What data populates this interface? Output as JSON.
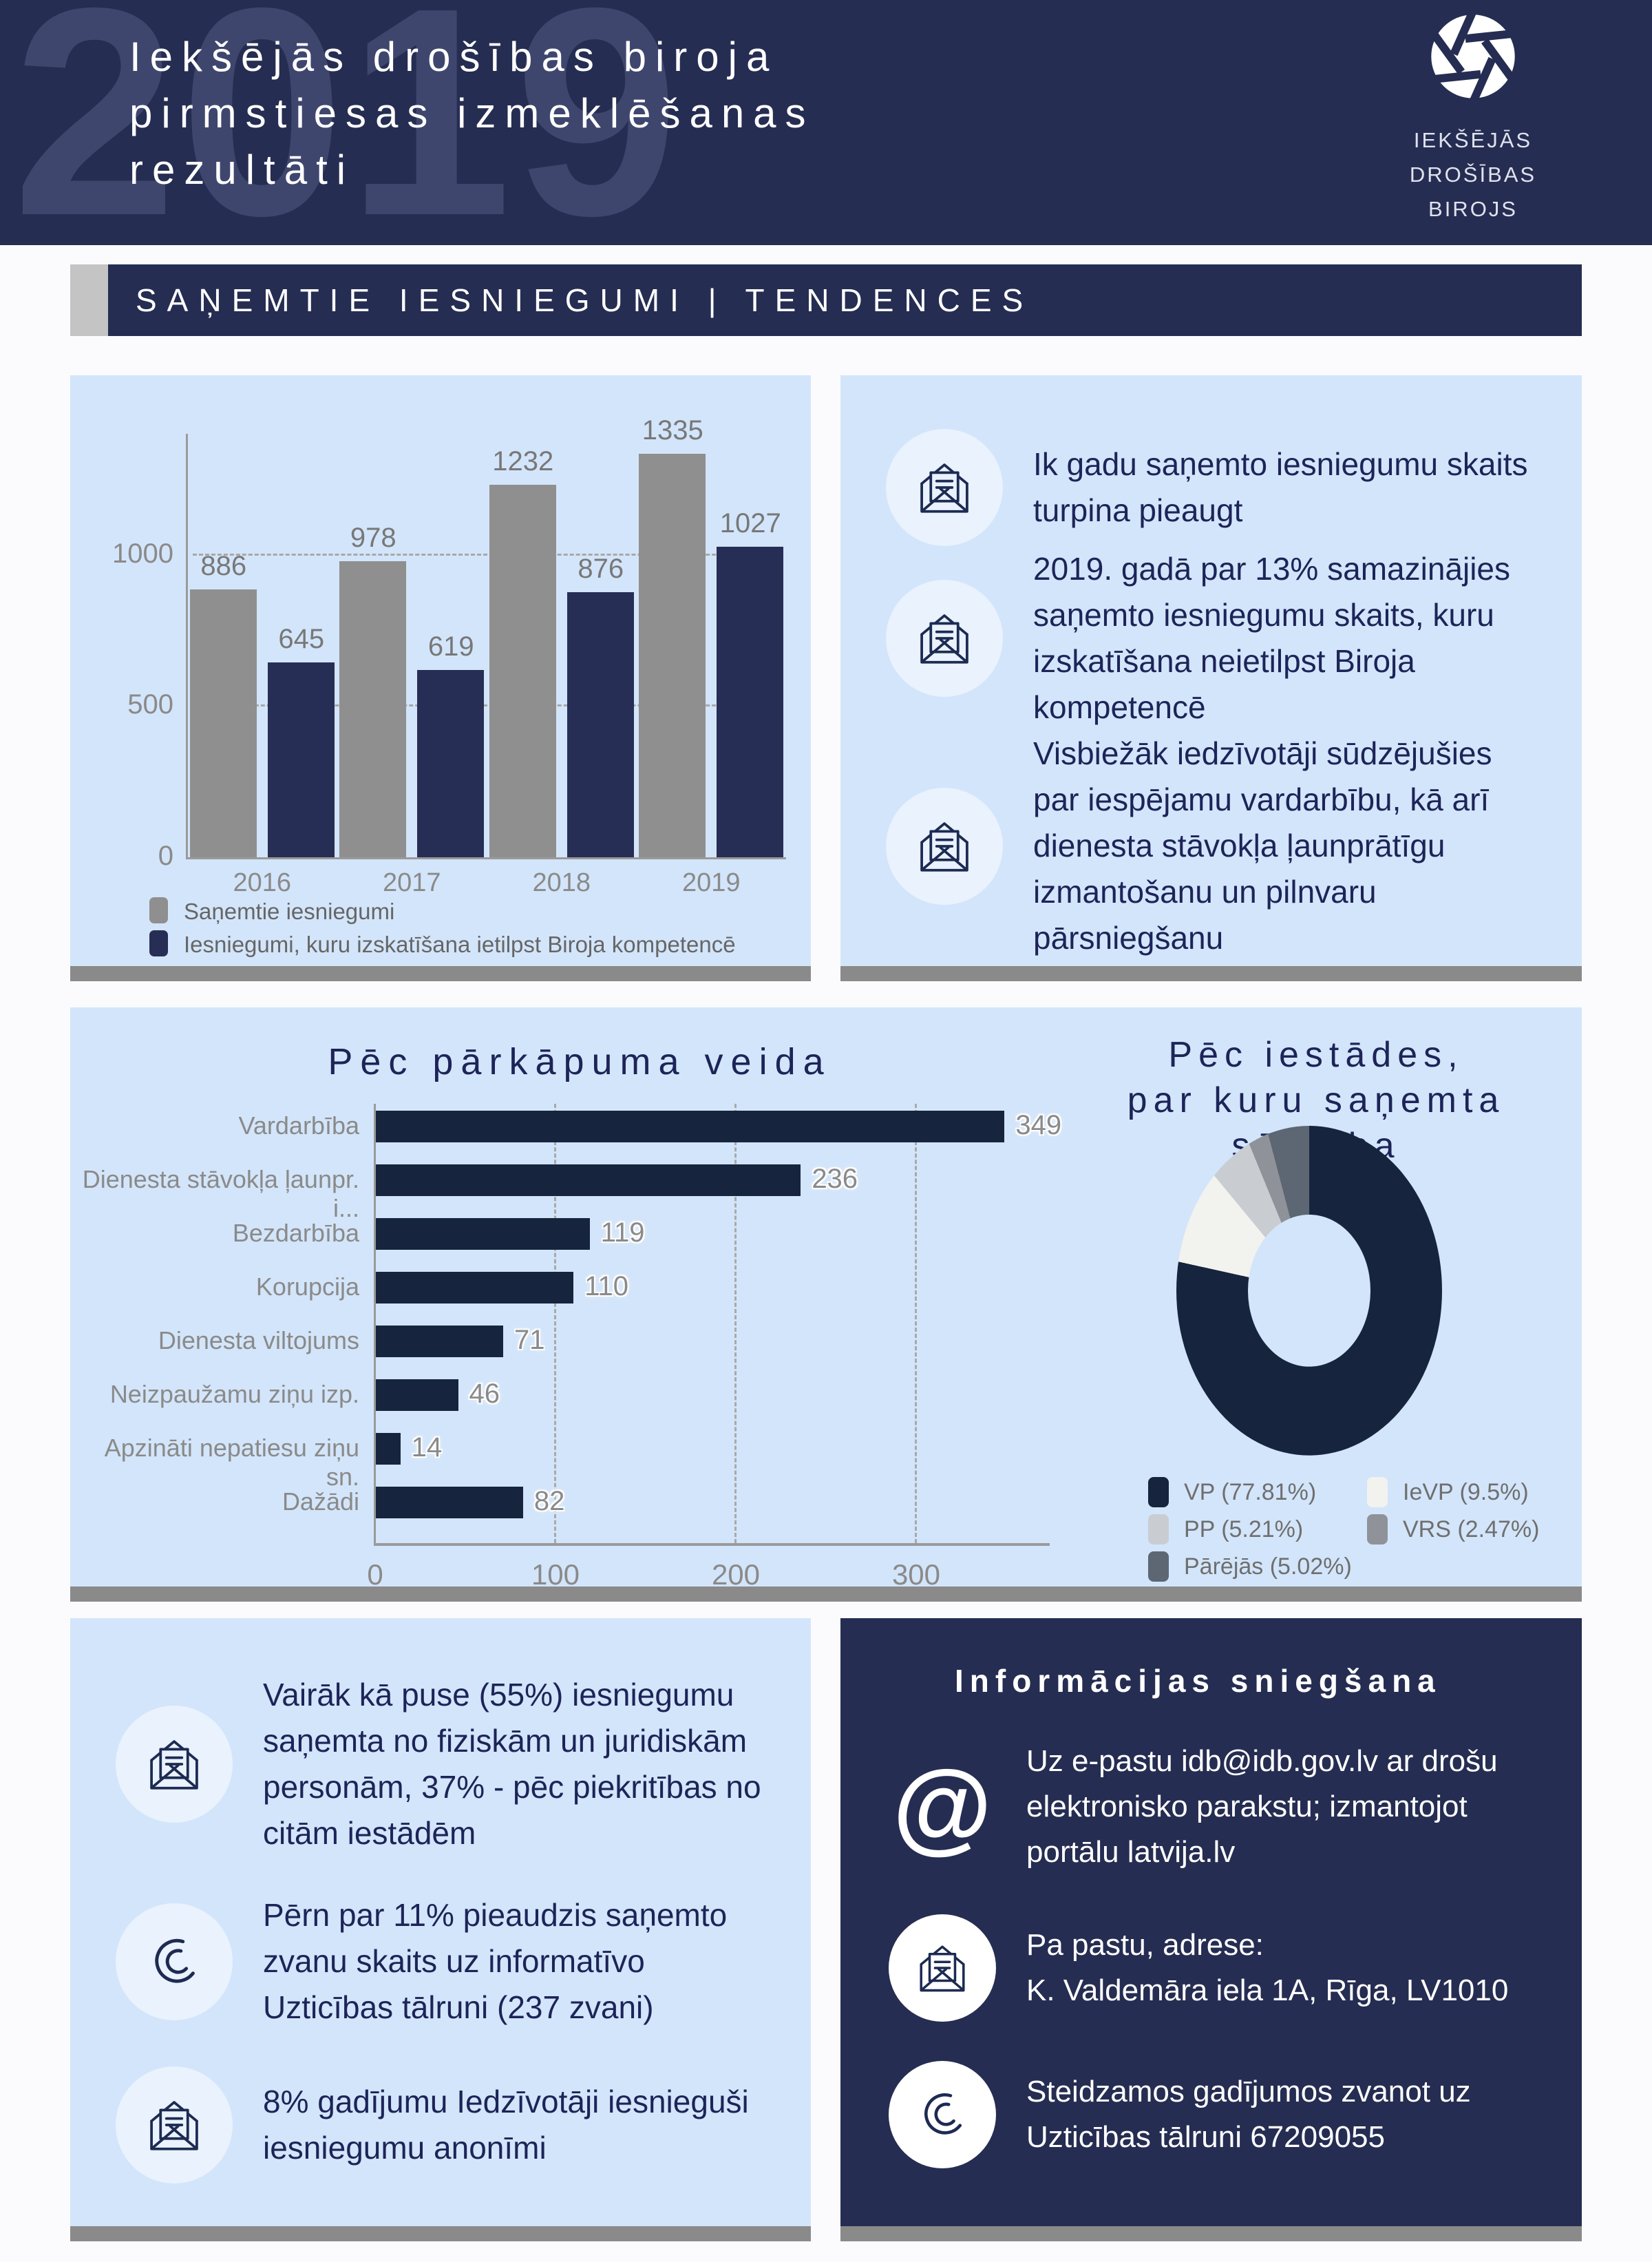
{
  "header": {
    "year_watermark": "2019",
    "title_lines": [
      "Iekšējās drošības biroja",
      "pirmstiesas izmeklēšanas",
      "rezultāti"
    ],
    "logo_text_lines": [
      "IEKŠĒJĀS",
      "DROŠĪBAS",
      "BIROJS"
    ]
  },
  "section_bar": {
    "title": "SAŅEMTIE IESNIEGUMI | TENDENCES"
  },
  "colors": {
    "navy": "#262d52",
    "panel_blue": "#d3e5fa",
    "dark_bar": "#16243e",
    "gray_bar": "#8f8f8f",
    "axis_gray": "#9a9a9a",
    "label_gray": "#8a8a8a",
    "shadow_gray": "#8a8a8a"
  },
  "chart_data": [
    {
      "type": "bar",
      "categories": [
        "2016",
        "2017",
        "2018",
        "2019"
      ],
      "series": [
        {
          "name": "Saņemtie iesniegumi",
          "color": "#8f8f8f",
          "values": [
            886,
            978,
            1232,
            1335
          ]
        },
        {
          "name": "Iesniegumi, kuru izskatīšana ietilpst Biroja kompetencē",
          "color": "#272e55",
          "values": [
            645,
            619,
            876,
            1027
          ]
        }
      ],
      "ylim": [
        0,
        1400
      ],
      "yticks": [
        0,
        500,
        1000
      ],
      "grid": "dashed-horizontal",
      "legend_position": "bottom-left"
    },
    {
      "type": "bar-horizontal",
      "title": "Pēc pārkāpuma veida",
      "categories": [
        "Vardarbība",
        "Dienesta stāvokļa ļaunpr. i...",
        "Bezdarbība",
        "Korupcija",
        "Dienesta viltojums",
        "Neizpaužamu ziņu izp.",
        "Apzināti nepatiesu ziņu sn.",
        "Dažādi"
      ],
      "values": [
        349,
        236,
        119,
        110,
        71,
        46,
        14,
        82
      ],
      "xlim": [
        0,
        373
      ],
      "xticks": [
        0,
        100,
        200,
        300
      ],
      "bar_color": "#16243e",
      "grid": "dashed-vertical"
    },
    {
      "type": "pie",
      "title_lines": [
        "Pēc iestādes,",
        "par kuru saņemta sūdzība"
      ],
      "slices": [
        {
          "label": "VP",
          "pct": 77.81,
          "color": "#16243e",
          "legend": "VP (77.81%)"
        },
        {
          "label": "IeVP",
          "pct": 9.5,
          "color": "#f2f2ef",
          "legend": "IeVP (9.5%)"
        },
        {
          "label": "PP",
          "pct": 5.21,
          "color": "#c9cdd2",
          "legend": "PP (5.21%)"
        },
        {
          "label": "VRS",
          "pct": 2.47,
          "color": "#8f9399",
          "legend": "VRS (2.47%)"
        },
        {
          "label": "Pārējās",
          "pct": 5.02,
          "color": "#5d6774",
          "legend": "Pārējās (5.02%)"
        }
      ],
      "legend_order": [
        0,
        2,
        4,
        1,
        3
      ],
      "donut_hole": true,
      "legend_position": "bottom"
    }
  ],
  "trends_panel": {
    "items": [
      {
        "icon": "envelope-icon",
        "text": "Ik gadu saņemto iesniegumu skaits turpina pieaugt"
      },
      {
        "icon": "envelope-icon",
        "text": "2019. gadā par 13% samazinājies saņemto iesniegumu skaits, kuru izskatīšana neietilpst Biroja kompetencē"
      },
      {
        "icon": "envelope-icon",
        "text": "Visbiežāk iedzīvotāji sūdzējušies par iespējamu vardarbību, kā arī dienesta stāvokļa ļaunprātīgu izmantošanu un pilnvaru pārsniegšanu"
      }
    ]
  },
  "facts_panel": {
    "items": [
      {
        "icon": "envelope-icon",
        "text": "Vairāk kā puse (55%) iesniegumu saņemta no fiziskām un juridiskām personām, 37% - pēc piekritības no citām iestādēm"
      },
      {
        "icon": "phone-icon",
        "text": "Pērn par 11% pieaudzis saņemto zvanu skaits uz informatīvo Uzticības tālruni (237 zvani)"
      },
      {
        "icon": "envelope-icon",
        "text": "8% gadījumu Iedzīvotāji iesnieguši iesniegumu anonīmi"
      }
    ]
  },
  "info_panel": {
    "title": "Informācijas sniegšana",
    "items": [
      {
        "icon": "at-icon",
        "icon_glyph": "@",
        "text": "Uz e-pastu idb@idb.gov.lv ar drošu elektronisko parakstu; izmantojot portālu latvija.lv"
      },
      {
        "icon": "envelope-icon",
        "text": "Pa pastu, adrese:\nK. Valdemāra iela 1A, Rīga, LV1010"
      },
      {
        "icon": "phone-icon",
        "text": "Steidzamos gadījumos zvanot uz Uzticības tālruni 67209055"
      }
    ]
  }
}
